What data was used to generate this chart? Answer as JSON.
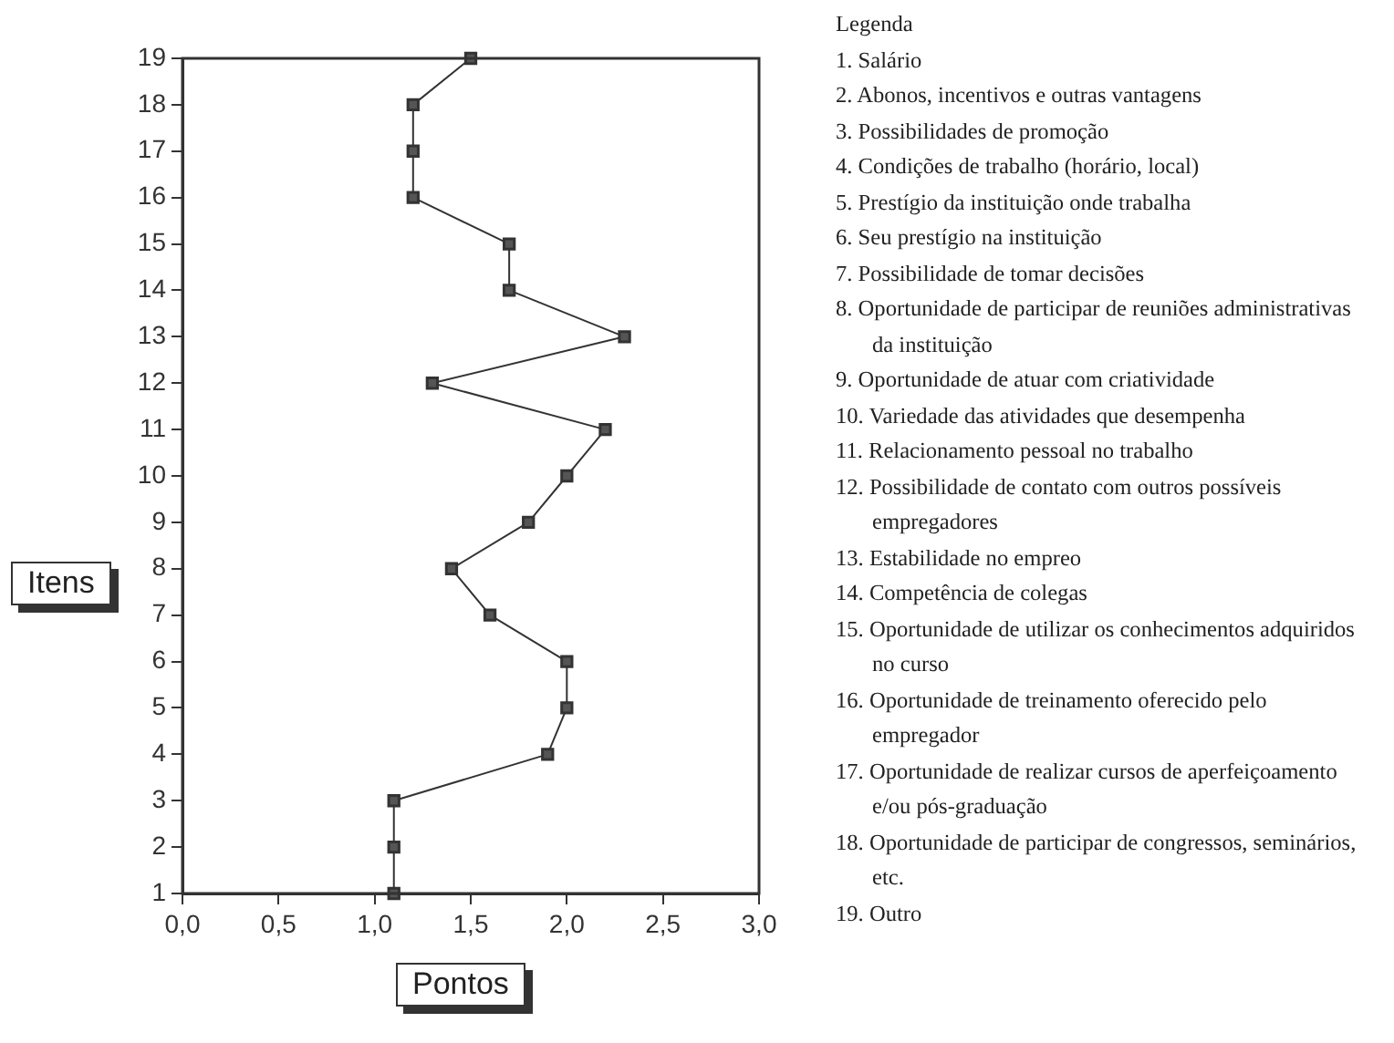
{
  "chart_data": {
    "type": "line",
    "xlabel": "Pontos",
    "ylabel": "Itens",
    "orientation": "horizontal",
    "categories": [
      "19",
      "18",
      "17",
      "16",
      "15",
      "14",
      "13",
      "12",
      "11",
      "10",
      "9",
      "8",
      "7",
      "6",
      "5",
      "4",
      "3",
      "2",
      "1"
    ],
    "series": [
      {
        "color": "#333333",
        "values": [
          1.5,
          1.2,
          1.2,
          1.2,
          1.7,
          1.7,
          2.3,
          1.3,
          2.2,
          2.0,
          1.8,
          1.4,
          1.6,
          2.0,
          2.0,
          1.9,
          1.1,
          1.1,
          1.1
        ]
      }
    ],
    "xlim": [
      0,
      3
    ],
    "xticks": [
      {
        "value": 0,
        "label": "0,0"
      },
      {
        "value": 0.5,
        "label": "0,5"
      },
      {
        "value": 1,
        "label": "1,0"
      },
      {
        "value": 1.5,
        "label": "1,5"
      },
      {
        "value": 2,
        "label": "2,0"
      },
      {
        "value": 2.5,
        "label": "2,5"
      },
      {
        "value": 3,
        "label": "3,0"
      }
    ],
    "grid": false,
    "legend": false,
    "marker": "square",
    "line_style": "solid",
    "annotations": [
      "Legenda",
      "1. Salário",
      "2. Abonos, incentivos e outras vantagens",
      "3. Possibilidades de promoção",
      "4. Condições de trabalho (horário, local)",
      "5. Prestígio da instituição onde trabalha",
      "6. Seu prestígio na instituição",
      "7. Possibilidade de tomar decisões",
      "8. Oportunidade de participar de reuniões administrativas da instituição",
      "9. Oportunidade de atuar com criatividade",
      "10. Variedade das atividades que desempenha",
      "11. Relacionamento pessoal no trabalho",
      "12. Possibilidade de contato com outros possíveis empregadores",
      "13. Estabilidade no empreo",
      "14. Competência de colegas",
      "15. Oportunidade de utilizar os conhecimentos adquiridos no curso",
      "16. Oportunidade de treinamento oferecido pelo empregador",
      "17. Oportunidade de realizar cursos de aperfeiçoamento e/ou pós-graduação",
      "18. Oportunidade de participar de congressos, seminários, etc.",
      "19. Outro"
    ]
  }
}
